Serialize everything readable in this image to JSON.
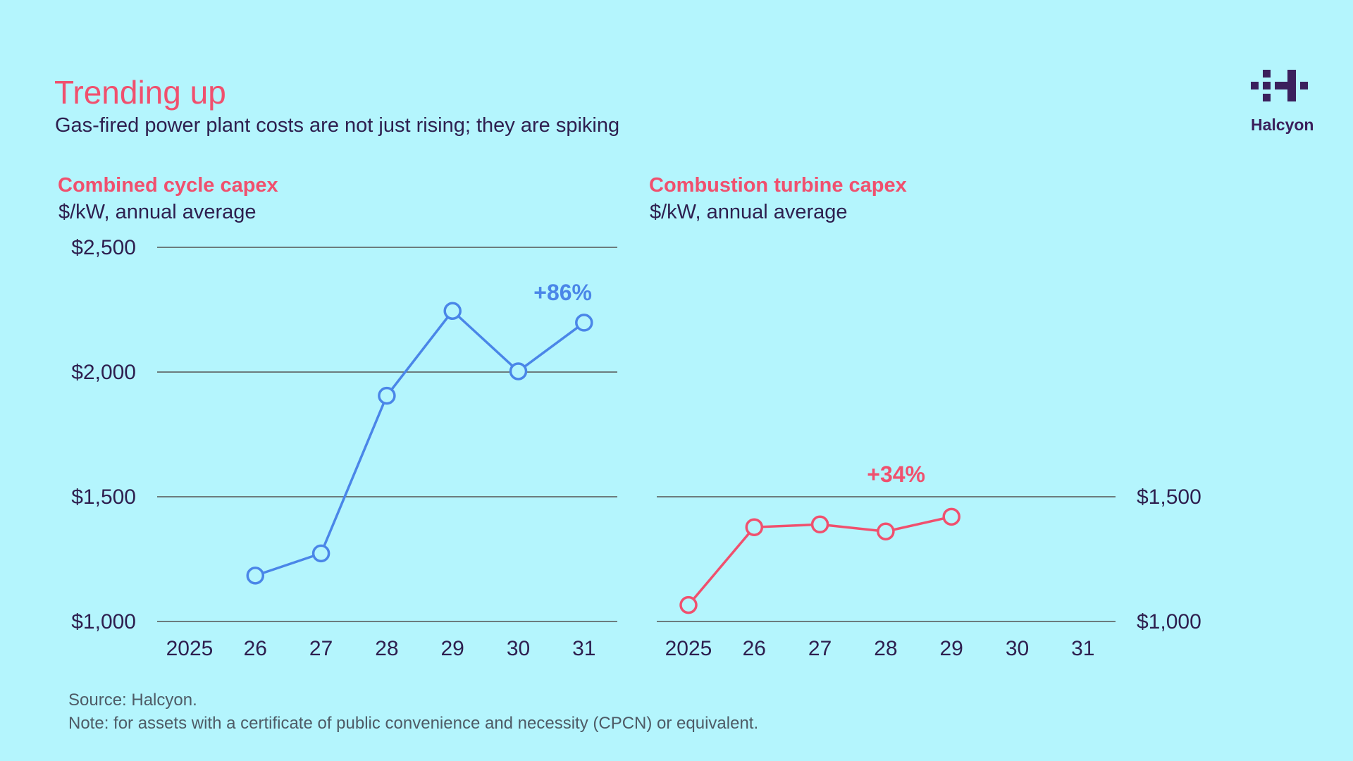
{
  "header": {
    "title": "Trending up",
    "subtitle": "Gas-fired power plant costs are not just rising; they are spiking"
  },
  "logo": {
    "text": "Halcyon"
  },
  "colors": {
    "background": "#b4f5fd",
    "accent_red": "#f0506e",
    "accent_blue": "#4a86e8",
    "text": "#2e1f4f",
    "grid": "#555555"
  },
  "chart_data": [
    {
      "type": "line",
      "title": "Combined cycle capex",
      "ylabel": "$/kW, annual average",
      "categories": [
        "2025",
        "26",
        "27",
        "28",
        "29",
        "30",
        "31"
      ],
      "values": [
        null,
        1184,
        1273,
        1905,
        2245,
        2003,
        2198
      ],
      "ylim": [
        1000,
        2500
      ],
      "yticks": [
        1000,
        1500,
        2000,
        2500
      ],
      "ytick_labels": [
        "$1,000",
        "$1,500",
        "$2,000",
        "$2,500"
      ],
      "y_axis_side": "left",
      "annotation": "+86%",
      "color": "#4a86e8"
    },
    {
      "type": "line",
      "title": "Combustion turbine capex",
      "ylabel": "$/kW, annual average",
      "categories": [
        "2025",
        "26",
        "27",
        "28",
        "29",
        "30",
        "31"
      ],
      "values": [
        1066,
        1378,
        1389,
        1361,
        1420,
        null,
        null
      ],
      "ylim": [
        1000,
        1500
      ],
      "yticks": [
        1000,
        1500
      ],
      "ytick_labels": [
        "$1,000",
        "$1,500"
      ],
      "y_axis_side": "right",
      "annotation": "+34%",
      "color": "#f0506e"
    }
  ],
  "footer": {
    "source": "Source: Halcyon.",
    "note": "Note: for assets with a certificate of public convenience and necessity (CPCN) or equivalent."
  }
}
